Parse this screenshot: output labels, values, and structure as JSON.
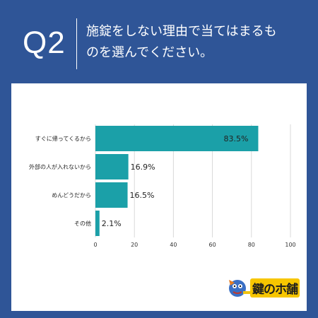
{
  "header": {
    "q_number": "Q2",
    "question_line1": "施錠をしない理由で当てはまるも",
    "question_line2": "のを選んでください。"
  },
  "chart_data": {
    "type": "bar",
    "orientation": "horizontal",
    "categories": [
      "すぐに帰ってくるから",
      "外部の人が入れないから",
      "めんどうだから",
      "その他"
    ],
    "values": [
      83.5,
      16.9,
      16.5,
      2.1
    ],
    "value_labels": [
      "83.5%",
      "16.9%",
      "16.5%",
      "2.1%"
    ],
    "xlim": [
      0,
      100
    ],
    "xticks": [
      0,
      20,
      40,
      60,
      80,
      100
    ],
    "xtick_labels": [
      "0",
      "20",
      "40",
      "60",
      "80",
      "100"
    ],
    "bar_color": "#1ba0a8",
    "grid": true
  },
  "logo": {
    "text": "鍵のホ舗"
  },
  "colors": {
    "background": "#2f5597",
    "panel": "#ffffff",
    "bar": "#1ba0a8"
  }
}
